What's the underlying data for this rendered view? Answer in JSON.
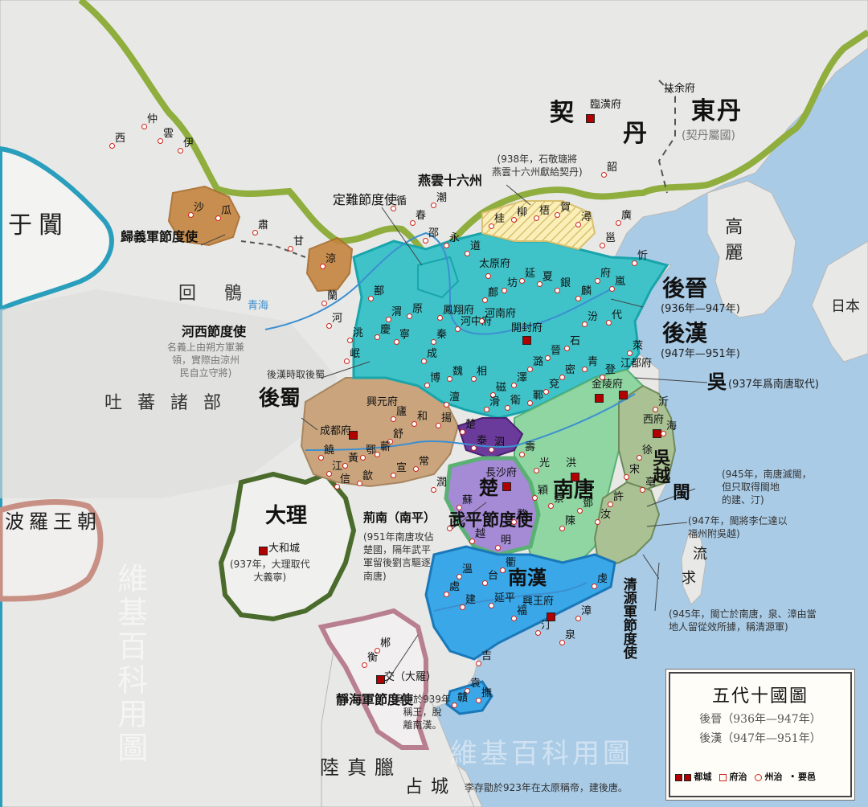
{
  "states": {
    "khitan": [
      "契",
      "丹"
    ],
    "east_dan": "東丹",
    "east_dan_note": "(契丹屬國)",
    "later_jin": "後晉",
    "later_jin_years": "(936年—947年)",
    "later_han": "後漢",
    "later_han_years": "(947年—951年)",
    "wu": "吳",
    "wu_note": "(937年爲南唐取代)",
    "later_shu": "後蜀",
    "nan_tang": "南唐",
    "wu_yue": "吳越",
    "min": "閩",
    "chu": "楚",
    "wuping": "武平節度使",
    "nan_han": "南漢",
    "jingnan": "荊南（南平）",
    "dali": "大理",
    "goryeo": "高麗",
    "japan": "日本",
    "liuqiu": [
      "流",
      "求"
    ],
    "khotan": "于闐",
    "uyghur": "回 鶻",
    "tubo": "吐 蕃 諸 部",
    "pagan": "波羅王朝",
    "lu_zhen_la": "陸真臘",
    "champa": "占城",
    "qingyuan": "清源軍節度使",
    "jinghai": "靜海軍節度使",
    "guiyi": "歸義軍節度使",
    "hexi": "河西節度使",
    "dingnan": "定難節度使",
    "yanyun": "燕雲十六州"
  },
  "notes": {
    "yanyun": "(938年，石敬瑭將\n燕雲十六州獻給契丹)",
    "hexi": "名義上由朔方軍兼\n領，實際由涼州\n民自立守將)",
    "later_shu_took": "後漢時取後蜀",
    "jingnan": "(951年南唐攻佔\n楚國，隔年武平\n軍留後劉言驅逐\n南唐)",
    "dali": "(937年，大理取代\n大義寧)",
    "min": "(945年，南唐滅閩，\n但只取得閩地\n的建、汀)",
    "min2": "(947年，閩將李仁達以\n福州附吳越)",
    "qingyuan": "(945年，閩亡於南唐，泉、漳由當\n地人留從效所據，稱清源軍)",
    "jinghai": "吳權於939年\n稱王，脫\n離南漢。",
    "bottom": "李存勖於923年在太原稱帝，建後唐。"
  },
  "capitals": {
    "linhuang": "臨潢府",
    "kaifeng": "開封府",
    "taiyuan": "太原府",
    "chengdu": "成都府",
    "jinling": "金陵府",
    "changsha": "長沙府",
    "xingwang": "興王府",
    "jiangdu": "江都府",
    "xifu": "西府",
    "hongzhou": "洪",
    "dahe": "大和城",
    "jiao": "交（大羅）",
    "xingyuan": "興元府",
    "fuyu": "扶余府"
  },
  "towns": [
    "仲",
    "雲",
    "伊",
    "西",
    "沙",
    "瓜",
    "肅",
    "甘",
    "涼",
    "蘭",
    "河",
    "洮",
    "岷",
    "鄯",
    "渭",
    "原",
    "慶",
    "寧",
    "秦",
    "成",
    "鳳翔府",
    "河中府",
    "河南府",
    "鄜",
    "坊",
    "延",
    "夏",
    "銀",
    "麟",
    "府",
    "嵐",
    "忻",
    "代",
    "汾",
    "石",
    "晉",
    "潞",
    "澤",
    "磁",
    "相",
    "魏",
    "博",
    "澶",
    "滑",
    "衛",
    "鄆",
    "兗",
    "密",
    "青",
    "登",
    "萊",
    "沂",
    "海",
    "徐",
    "宋",
    "亳",
    "許",
    "汝",
    "鄧",
    "陳",
    "蔡",
    "穎",
    "光",
    "壽",
    "泗",
    "泰",
    "楚",
    "揚",
    "和",
    "廬",
    "舒",
    "蘄",
    "鄂",
    "黃",
    "江",
    "饒",
    "信",
    "歙",
    "宣",
    "常",
    "潤",
    "蘇",
    "杭",
    "越",
    "明",
    "婺",
    "衢",
    "台",
    "溫",
    "處",
    "建",
    "延平",
    "福",
    "汀",
    "泉",
    "漳",
    "虔",
    "吉",
    "袁",
    "撫",
    "贛",
    "郴",
    "衡",
    "邵",
    "永",
    "道",
    "桂",
    "柳",
    "梧",
    "賀",
    "潯",
    "邕",
    "廣",
    "韶",
    "循",
    "潮",
    "春",
    "雷",
    "儋",
    "振",
    "峰",
    "愛",
    "巫",
    "辰",
    "澧",
    "朗",
    "岳",
    "荊",
    "峽",
    "歸",
    "房",
    "均",
    "金",
    "商",
    "梁",
    "洋",
    "利",
    "閬",
    "巴",
    "渠",
    "通",
    "開",
    "萬",
    "夔",
    "忠",
    "涪",
    "渝",
    "瀘",
    "黔",
    "戎",
    "雅",
    "嘉",
    "眉",
    "茂",
    "綿",
    "梓",
    "遂",
    "合",
    "果",
    "普",
    "資",
    "簡",
    "翼",
    "蔚",
    "應",
    "朔",
    "媯",
    "檀",
    "薊",
    "幽",
    "瀛",
    "莫",
    "涿",
    "易",
    "定",
    "鎮",
    "冀",
    "深",
    "趙",
    "邢",
    "平",
    "營",
    "泰",
    "勝",
    "豐"
  ],
  "watermark": {
    "vertical": "維基百科用圖",
    "horizontal": "維基百科用圖",
    "qinghai": "青海"
  },
  "legend": {
    "title": "五代十國圖",
    "row1": "後晉（936年—947年）",
    "row2": "後漢（947年—951年）",
    "key_capital": "都城",
    "key_prefecture_seat": "府治",
    "key_zhou": "州治",
    "key_town": "要邑",
    "key_capital_color": "#b00000",
    "key_seat_color": "#d0251b"
  },
  "colors": {
    "sea": "#a9cbe6",
    "land": "#e9e9e7",
    "later_jin": "#3fc3c8",
    "later_shu": "#c9a47d",
    "nan_tang": "#8fd6a2",
    "wu_yue": "#a9c193",
    "chu": "#a58ad6",
    "nan_han": "#3aa8e8",
    "jingnan": "#6a3b9a",
    "khitan_border": "#8fae3e",
    "dali_border": "#4a6b2c",
    "guiyi": "#c4853f",
    "tarim_border": "#2a9ebd",
    "pagan_border": "#c88f84",
    "jinghai_border": "#b87f90"
  }
}
